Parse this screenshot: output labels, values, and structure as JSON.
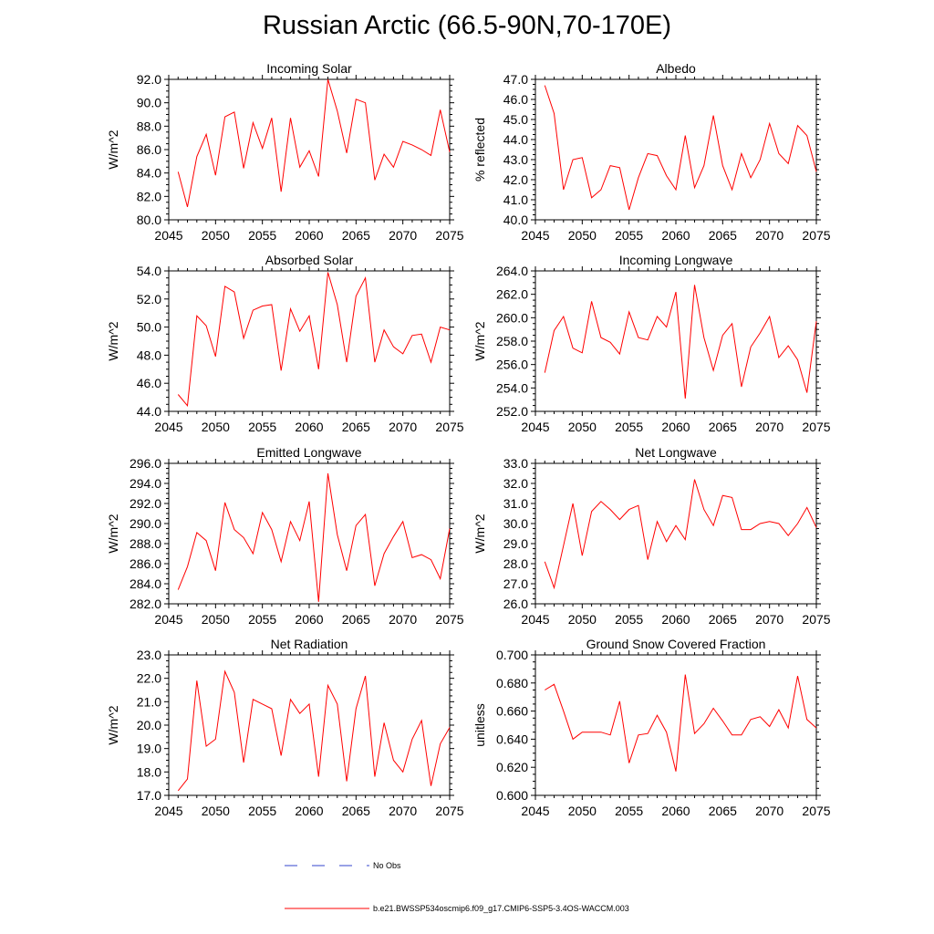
{
  "title": "Russian Arctic (66.5-90N,70-170E)",
  "colors": {
    "series": "#ff0000",
    "no_obs": "#3344cc",
    "axis": "#000000"
  },
  "legend": {
    "no_obs_label": "No Obs",
    "model_label": "b.e21.BWSSP534oscmip6.f09_g17.CMIP6-SSP5-3.4OS-WACCM.003"
  },
  "chart_data": [
    {
      "type": "line",
      "title": "Incoming Solar",
      "ylabel": "W/m^2",
      "xlim": [
        2045,
        2075
      ],
      "ylim": [
        80,
        92
      ],
      "xticks": [
        2045,
        2050,
        2055,
        2060,
        2065,
        2070,
        2075
      ],
      "yticks": [
        "80.0",
        "82.0",
        "84.0",
        "86.0",
        "88.0",
        "90.0",
        "92.0"
      ],
      "x": [
        2046,
        2047,
        2048,
        2049,
        2050,
        2051,
        2052,
        2053,
        2054,
        2055,
        2056,
        2057,
        2058,
        2059,
        2060,
        2061,
        2062,
        2063,
        2064,
        2065,
        2066,
        2067,
        2068,
        2069,
        2070,
        2071,
        2072,
        2073,
        2074,
        2075
      ],
      "series": [
        {
          "values": [
            84.1,
            81.1,
            85.4,
            87.3,
            83.8,
            88.8,
            89.2,
            84.4,
            88.3,
            86.1,
            88.7,
            82.4,
            88.7,
            84.5,
            85.9,
            83.7,
            92.0,
            89.3,
            85.7,
            90.3,
            90.0,
            83.4,
            85.6,
            84.5,
            86.7,
            86.4,
            86.0,
            85.5,
            89.4,
            85.8
          ]
        }
      ]
    },
    {
      "type": "line",
      "title": "Albedo",
      "ylabel": "% reflected",
      "xlim": [
        2045,
        2075
      ],
      "ylim": [
        40,
        47
      ],
      "xticks": [
        2045,
        2050,
        2055,
        2060,
        2065,
        2070,
        2075
      ],
      "yticks": [
        "40.0",
        "41.0",
        "42.0",
        "43.0",
        "44.0",
        "45.0",
        "46.0",
        "47.0"
      ],
      "x": [
        2046,
        2047,
        2048,
        2049,
        2050,
        2051,
        2052,
        2053,
        2054,
        2055,
        2056,
        2057,
        2058,
        2059,
        2060,
        2061,
        2062,
        2063,
        2064,
        2065,
        2066,
        2067,
        2068,
        2069,
        2070,
        2071,
        2072,
        2073,
        2074,
        2075
      ],
      "series": [
        {
          "values": [
            46.7,
            45.3,
            41.5,
            43.0,
            43.1,
            41.1,
            41.5,
            42.7,
            42.6,
            40.5,
            42.1,
            43.3,
            43.2,
            42.2,
            41.5,
            44.2,
            41.6,
            42.7,
            45.2,
            42.7,
            41.5,
            43.3,
            42.1,
            43.0,
            44.8,
            43.3,
            42.8,
            44.7,
            44.2,
            42.4
          ]
        }
      ]
    },
    {
      "type": "line",
      "title": "Absorbed Solar",
      "ylabel": "W/m^2",
      "xlim": [
        2045,
        2075
      ],
      "ylim": [
        44,
        54
      ],
      "xticks": [
        2045,
        2050,
        2055,
        2060,
        2065,
        2070,
        2075
      ],
      "yticks": [
        "44.0",
        "46.0",
        "48.0",
        "50.0",
        "52.0",
        "54.0"
      ],
      "x": [
        2046,
        2047,
        2048,
        2049,
        2050,
        2051,
        2052,
        2053,
        2054,
        2055,
        2056,
        2057,
        2058,
        2059,
        2060,
        2061,
        2062,
        2063,
        2064,
        2065,
        2066,
        2067,
        2068,
        2069,
        2070,
        2071,
        2072,
        2073,
        2074,
        2075
      ],
      "series": [
        {
          "values": [
            45.2,
            44.4,
            50.8,
            50.1,
            47.9,
            52.9,
            52.5,
            49.2,
            51.2,
            51.5,
            51.6,
            46.9,
            51.3,
            49.7,
            50.8,
            47.0,
            53.9,
            51.6,
            47.5,
            52.2,
            53.5,
            47.5,
            49.8,
            48.6,
            48.1,
            49.4,
            49.5,
            47.5,
            50.0,
            49.8
          ]
        }
      ]
    },
    {
      "type": "line",
      "title": "Incoming Longwave",
      "ylabel": "W/m^2",
      "xlim": [
        2045,
        2075
      ],
      "ylim": [
        252,
        264
      ],
      "xticks": [
        2045,
        2050,
        2055,
        2060,
        2065,
        2070,
        2075
      ],
      "yticks": [
        "252.0",
        "254.0",
        "256.0",
        "258.0",
        "260.0",
        "262.0",
        "264.0"
      ],
      "x": [
        2046,
        2047,
        2048,
        2049,
        2050,
        2051,
        2052,
        2053,
        2054,
        2055,
        2056,
        2057,
        2058,
        2059,
        2060,
        2061,
        2062,
        2063,
        2064,
        2065,
        2066,
        2067,
        2068,
        2069,
        2070,
        2071,
        2072,
        2073,
        2074,
        2075
      ],
      "series": [
        {
          "values": [
            255.3,
            258.9,
            260.1,
            257.4,
            257.0,
            261.4,
            258.3,
            257.9,
            256.9,
            260.5,
            258.3,
            258.1,
            260.1,
            259.2,
            262.2,
            253.1,
            262.8,
            258.3,
            255.5,
            258.5,
            259.5,
            254.1,
            257.5,
            258.7,
            260.1,
            256.6,
            257.6,
            256.4,
            253.6,
            259.7
          ]
        }
      ]
    },
    {
      "type": "line",
      "title": "Emitted Longwave",
      "ylabel": "W/m^2",
      "xlim": [
        2045,
        2075
      ],
      "ylim": [
        282,
        296
      ],
      "xticks": [
        2045,
        2050,
        2055,
        2060,
        2065,
        2070,
        2075
      ],
      "yticks": [
        "282.0",
        "284.0",
        "286.0",
        "288.0",
        "290.0",
        "292.0",
        "294.0",
        "296.0"
      ],
      "x": [
        2046,
        2047,
        2048,
        2049,
        2050,
        2051,
        2052,
        2053,
        2054,
        2055,
        2056,
        2057,
        2058,
        2059,
        2060,
        2061,
        2062,
        2063,
        2064,
        2065,
        2066,
        2067,
        2068,
        2069,
        2070,
        2071,
        2072,
        2073,
        2074,
        2075
      ],
      "series": [
        {
          "values": [
            283.4,
            285.7,
            289.1,
            288.3,
            285.3,
            292.1,
            289.4,
            288.6,
            287.0,
            291.1,
            289.4,
            286.2,
            290.2,
            288.3,
            292.2,
            282.2,
            295.0,
            288.9,
            285.3,
            289.8,
            290.9,
            283.8,
            287.0,
            288.7,
            290.2,
            286.6,
            286.9,
            286.4,
            284.5,
            289.5
          ]
        }
      ]
    },
    {
      "type": "line",
      "title": "Net Longwave",
      "ylabel": "W/m^2",
      "xlim": [
        2045,
        2075
      ],
      "ylim": [
        26,
        33
      ],
      "xticks": [
        2045,
        2050,
        2055,
        2060,
        2065,
        2070,
        2075
      ],
      "yticks": [
        "26.0",
        "27.0",
        "28.0",
        "29.0",
        "30.0",
        "31.0",
        "32.0",
        "33.0"
      ],
      "x": [
        2046,
        2047,
        2048,
        2049,
        2050,
        2051,
        2052,
        2053,
        2054,
        2055,
        2056,
        2057,
        2058,
        2059,
        2060,
        2061,
        2062,
        2063,
        2064,
        2065,
        2066,
        2067,
        2068,
        2069,
        2070,
        2071,
        2072,
        2073,
        2074,
        2075
      ],
      "series": [
        {
          "values": [
            28.1,
            26.8,
            28.9,
            31.0,
            28.4,
            30.6,
            31.1,
            30.7,
            30.2,
            30.7,
            30.9,
            28.2,
            30.1,
            29.1,
            29.9,
            29.2,
            32.2,
            30.7,
            29.9,
            31.4,
            31.3,
            29.7,
            29.7,
            30.0,
            30.1,
            30.0,
            29.4,
            30.0,
            30.8,
            29.8
          ]
        }
      ]
    },
    {
      "type": "line",
      "title": "Net Radiation",
      "ylabel": "W/m^2",
      "xlim": [
        2045,
        2075
      ],
      "ylim": [
        17,
        23
      ],
      "xticks": [
        2045,
        2050,
        2055,
        2060,
        2065,
        2070,
        2075
      ],
      "yticks": [
        "17.0",
        "18.0",
        "19.0",
        "20.0",
        "21.0",
        "22.0",
        "23.0"
      ],
      "x": [
        2046,
        2047,
        2048,
        2049,
        2050,
        2051,
        2052,
        2053,
        2054,
        2055,
        2056,
        2057,
        2058,
        2059,
        2060,
        2061,
        2062,
        2063,
        2064,
        2065,
        2066,
        2067,
        2068,
        2069,
        2070,
        2071,
        2072,
        2073,
        2074,
        2075
      ],
      "series": [
        {
          "values": [
            17.2,
            17.7,
            21.9,
            19.1,
            19.4,
            22.3,
            21.4,
            18.4,
            21.1,
            20.9,
            20.7,
            18.7,
            21.1,
            20.5,
            20.9,
            17.8,
            21.7,
            20.9,
            17.6,
            20.7,
            22.1,
            17.8,
            20.1,
            18.5,
            18.0,
            19.4,
            20.2,
            17.4,
            19.2,
            19.9
          ]
        }
      ]
    },
    {
      "type": "line",
      "title": "Ground Snow Covered Fraction",
      "ylabel": "unitless",
      "xlim": [
        2045,
        2075
      ],
      "ylim": [
        0.6,
        0.7
      ],
      "xticks": [
        2045,
        2050,
        2055,
        2060,
        2065,
        2070,
        2075
      ],
      "yticks": [
        "0.600",
        "0.620",
        "0.640",
        "0.660",
        "0.680",
        "0.700"
      ],
      "x": [
        2046,
        2047,
        2048,
        2049,
        2050,
        2051,
        2052,
        2053,
        2054,
        2055,
        2056,
        2057,
        2058,
        2059,
        2060,
        2061,
        2062,
        2063,
        2064,
        2065,
        2066,
        2067,
        2068,
        2069,
        2070,
        2071,
        2072,
        2073,
        2074,
        2075
      ],
      "series": [
        {
          "values": [
            0.675,
            0.679,
            0.66,
            0.64,
            0.645,
            0.645,
            0.645,
            0.643,
            0.667,
            0.623,
            0.643,
            0.644,
            0.657,
            0.645,
            0.617,
            0.686,
            0.644,
            0.651,
            0.662,
            0.653,
            0.643,
            0.643,
            0.654,
            0.656,
            0.649,
            0.661,
            0.648,
            0.685,
            0.654,
            0.648
          ]
        }
      ]
    }
  ]
}
